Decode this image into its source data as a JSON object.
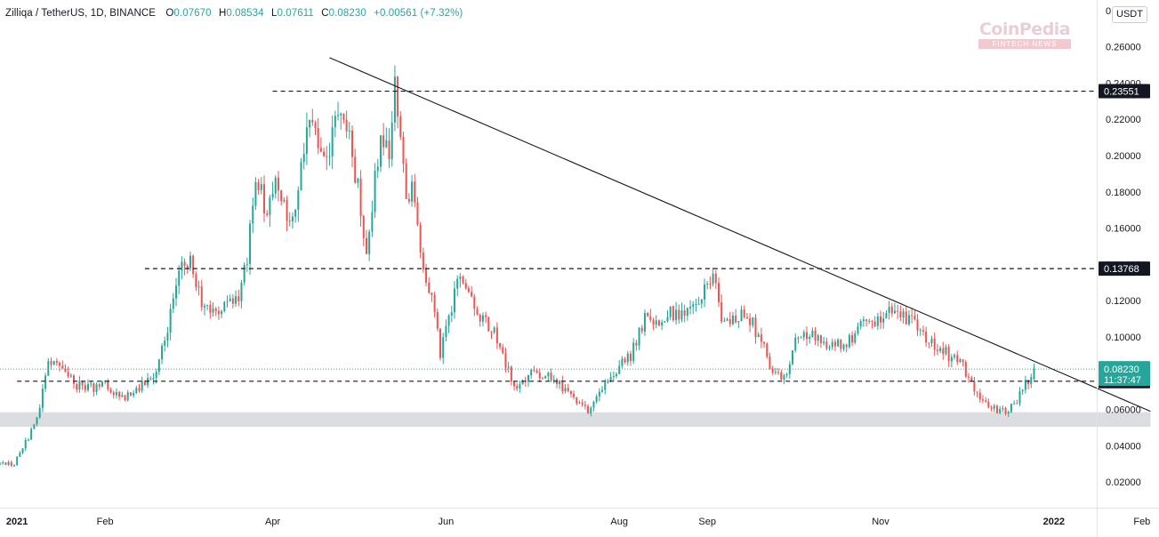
{
  "header": {
    "symbol": "Zilliqa / TetherUS, 1D, BINANCE",
    "open_label": "O",
    "open": "0.07670",
    "high_label": "H",
    "high": "0.08534",
    "low_label": "L",
    "low": "0.07611",
    "close_label": "C",
    "close": "0.08230",
    "change": "+0.00561 (+7.32%)"
  },
  "unit_button": "USDT",
  "watermark": {
    "brand": "CoinPedia",
    "tagline": "FINTECH NEWS"
  },
  "colors": {
    "up": "#26a69a",
    "down": "#ef5350",
    "zone": "#dcdde1",
    "line": "#131722"
  },
  "chart_data": {
    "type": "candlestick",
    "interval": "1D",
    "exchange": "BINANCE",
    "x_range": [
      "2020-12-26",
      "2022-02-07"
    ],
    "y_range": [
      0.0,
      0.27
    ],
    "y_ticks": [
      0.26,
      0.24,
      0.22,
      0.2,
      0.18,
      0.16,
      0.14,
      0.12,
      0.1,
      0.06,
      0.04,
      0.02
    ],
    "y_tick_labels": [
      "0.26000",
      "0.24000",
      "0.22000",
      "0.20000",
      "0.18000",
      "0.16000",
      "0.14000",
      "0.12000",
      "0.10000",
      "0.06000",
      "0.04000",
      "0.02000"
    ],
    "y_top_label": "0",
    "x_ticks": [
      {
        "date": "2021-01-01",
        "label": "2021",
        "bold": true
      },
      {
        "date": "2021-02-01",
        "label": "Feb"
      },
      {
        "date": "2021-04-01",
        "label": "Apr"
      },
      {
        "date": "2021-06-01",
        "label": "Jun"
      },
      {
        "date": "2021-08-01",
        "label": "Aug"
      },
      {
        "date": "2021-09-01",
        "label": "Sep"
      },
      {
        "date": "2021-11-01",
        "label": "Nov"
      },
      {
        "date": "2022-01-01",
        "label": "2022",
        "bold": true
      },
      {
        "date": "2022-02-01",
        "label": "Feb"
      }
    ],
    "path": [
      [
        "2020-12-26",
        0.03
      ],
      [
        "2020-12-31",
        0.03
      ],
      [
        "2021-01-05",
        0.045
      ],
      [
        "2021-01-09",
        0.062
      ],
      [
        "2021-01-12",
        0.088
      ],
      [
        "2021-01-16",
        0.084
      ],
      [
        "2021-01-21",
        0.074
      ],
      [
        "2021-01-27",
        0.072
      ],
      [
        "2021-02-01",
        0.074
      ],
      [
        "2021-02-06",
        0.066
      ],
      [
        "2021-02-12",
        0.071
      ],
      [
        "2021-02-18",
        0.078
      ],
      [
        "2021-02-23",
        0.106
      ],
      [
        "2021-02-27",
        0.138
      ],
      [
        "2021-03-03",
        0.142
      ],
      [
        "2021-03-07",
        0.12
      ],
      [
        "2021-03-11",
        0.112
      ],
      [
        "2021-03-15",
        0.118
      ],
      [
        "2021-03-20",
        0.122
      ],
      [
        "2021-03-23",
        0.142
      ],
      [
        "2021-03-26",
        0.186
      ],
      [
        "2021-03-30",
        0.17
      ],
      [
        "2021-04-03",
        0.188
      ],
      [
        "2021-04-07",
        0.158
      ],
      [
        "2021-04-10",
        0.185
      ],
      [
        "2021-04-14",
        0.222
      ],
      [
        "2021-04-16",
        0.21
      ],
      [
        "2021-04-19",
        0.196
      ],
      [
        "2021-04-22",
        0.21
      ],
      [
        "2021-04-25",
        0.23
      ],
      [
        "2021-04-28",
        0.206
      ],
      [
        "2021-05-01",
        0.182
      ],
      [
        "2021-05-04",
        0.148
      ],
      [
        "2021-05-06",
        0.172
      ],
      [
        "2021-05-09",
        0.212
      ],
      [
        "2021-05-12",
        0.198
      ],
      [
        "2021-05-14",
        0.238
      ],
      [
        "2021-05-16",
        0.214
      ],
      [
        "2021-05-18",
        0.178
      ],
      [
        "2021-05-20",
        0.185
      ],
      [
        "2021-05-22",
        0.158
      ],
      [
        "2021-05-24",
        0.133
      ],
      [
        "2021-05-27",
        0.12
      ],
      [
        "2021-05-30",
        0.092
      ],
      [
        "2021-06-02",
        0.108
      ],
      [
        "2021-06-05",
        0.135
      ],
      [
        "2021-06-09",
        0.122
      ],
      [
        "2021-06-13",
        0.112
      ],
      [
        "2021-06-18",
        0.102
      ],
      [
        "2021-06-22",
        0.085
      ],
      [
        "2021-06-26",
        0.07
      ],
      [
        "2021-07-01",
        0.082
      ],
      [
        "2021-07-08",
        0.078
      ],
      [
        "2021-07-15",
        0.068
      ],
      [
        "2021-07-21",
        0.058
      ],
      [
        "2021-07-25",
        0.07
      ],
      [
        "2021-07-30",
        0.08
      ],
      [
        "2021-08-05",
        0.09
      ],
      [
        "2021-08-10",
        0.11
      ],
      [
        "2021-08-14",
        0.108
      ],
      [
        "2021-08-18",
        0.114
      ],
      [
        "2021-08-24",
        0.112
      ],
      [
        "2021-08-29",
        0.118
      ],
      [
        "2021-09-03",
        0.134
      ],
      [
        "2021-09-07",
        0.105
      ],
      [
        "2021-09-12",
        0.112
      ],
      [
        "2021-09-16",
        0.11
      ],
      [
        "2021-09-20",
        0.098
      ],
      [
        "2021-09-24",
        0.08
      ],
      [
        "2021-09-28",
        0.076
      ],
      [
        "2021-10-02",
        0.1
      ],
      [
        "2021-10-08",
        0.101
      ],
      [
        "2021-10-15",
        0.094
      ],
      [
        "2021-10-22",
        0.1
      ],
      [
        "2021-10-26",
        0.108
      ],
      [
        "2021-10-30",
        0.104
      ],
      [
        "2021-11-03",
        0.117
      ],
      [
        "2021-11-07",
        0.114
      ],
      [
        "2021-11-11",
        0.11
      ],
      [
        "2021-11-15",
        0.104
      ],
      [
        "2021-11-20",
        0.095
      ],
      [
        "2021-11-25",
        0.09
      ],
      [
        "2021-11-29",
        0.088
      ],
      [
        "2021-12-03",
        0.074
      ],
      [
        "2021-12-07",
        0.064
      ],
      [
        "2021-12-11",
        0.06
      ],
      [
        "2021-12-15",
        0.06
      ],
      [
        "2021-12-19",
        0.064
      ],
      [
        "2021-12-22",
        0.075
      ],
      [
        "2021-12-24",
        0.0767
      ],
      [
        "2021-12-25",
        0.0823
      ]
    ],
    "levels": [
      {
        "value": 0.23551,
        "label": "0.23551",
        "from": "2021-04-01"
      },
      {
        "value": 0.13768,
        "label": "0.13768",
        "from": "2021-02-15"
      },
      {
        "value": 0.07559,
        "label": "0.07559",
        "from": "2021-01-01"
      }
    ],
    "last_price": {
      "value": 0.0823,
      "label": "0.08230",
      "countdown": "11:37:47"
    },
    "trendline": [
      [
        "2021-04-21",
        0.254
      ],
      [
        "2022-02-04",
        0.059
      ]
    ],
    "support_zone": {
      "from": "2020-12-26",
      "to": "2022-02-04",
      "low": 0.0505,
      "high": 0.0585
    }
  }
}
